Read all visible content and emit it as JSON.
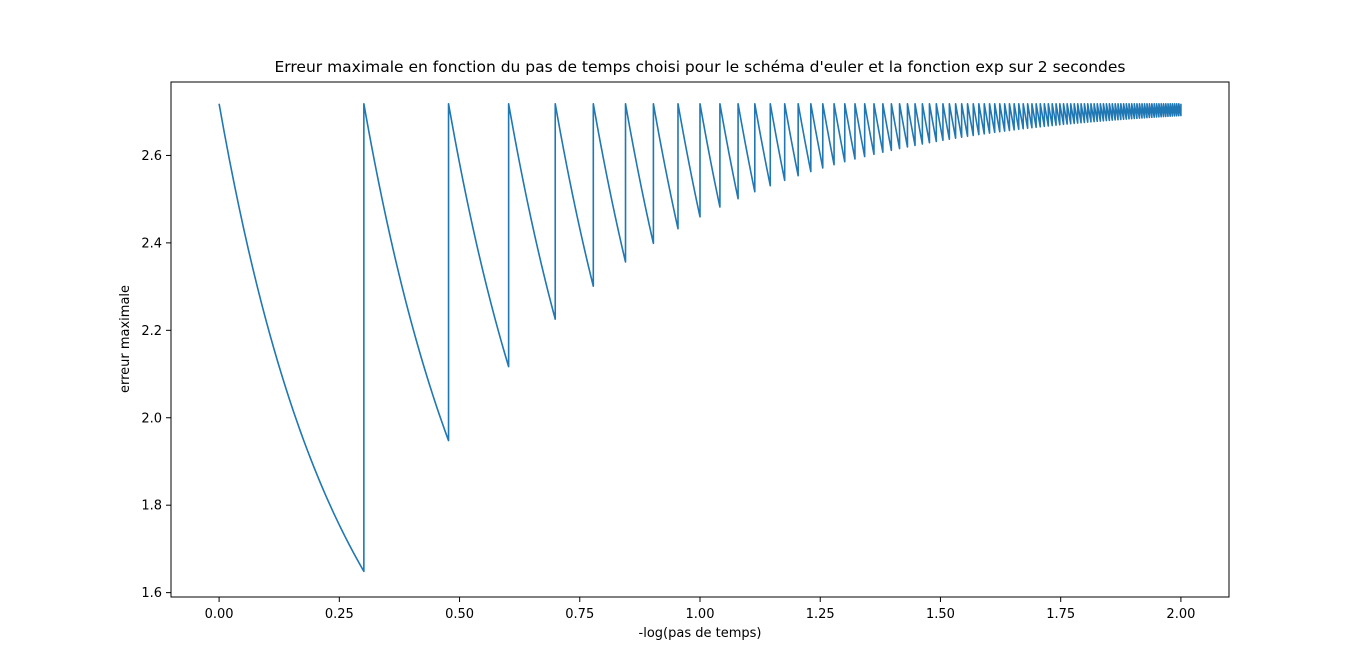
{
  "chart_data": {
    "type": "line",
    "title": "Erreur maximale en fonction du pas de temps choisi pour le schéma d'euler et la fonction exp sur 2 secondes",
    "xlabel": "-log(pas de temps)",
    "ylabel": "erreur maximale",
    "xlim": [
      -0.1,
      2.1
    ],
    "ylim": [
      1.59,
      2.768
    ],
    "xticks": [
      0.0,
      0.25,
      0.5,
      0.75,
      1.0,
      1.25,
      1.5,
      1.75,
      2.0
    ],
    "xtick_labels": [
      "0.00",
      "0.25",
      "0.50",
      "0.75",
      "1.00",
      "1.25",
      "1.50",
      "1.75",
      "2.00"
    ],
    "yticks": [
      1.6,
      1.8,
      2.0,
      2.2,
      2.4,
      2.6
    ],
    "ytick_labels": [
      "1.6",
      "1.8",
      "2.0",
      "2.2",
      "2.4",
      "2.6"
    ],
    "grid": false,
    "legend": "none",
    "series_color": "#1f77b4",
    "series": [
      {
        "description": "sawtooth: for each integer k from 1 to 100, x goes from log10(k) toward log10(k+1) while y decreases from e toward e^(k/(k+1)) then jumps back to e",
        "x_from": 1,
        "x_to": 100,
        "peak_value": 2.718,
        "trough_values": [
          {
            "x": 0.301,
            "y": 1.649
          },
          {
            "x": 0.477,
            "y": 1.948
          },
          {
            "x": 0.602,
            "y": 2.117
          },
          {
            "x": 0.699,
            "y": 2.226
          },
          {
            "x": 0.778,
            "y": 2.301
          },
          {
            "x": 0.845,
            "y": 2.357
          },
          {
            "x": 0.903,
            "y": 2.398
          },
          {
            "x": 0.954,
            "y": 2.432
          },
          {
            "x": 1.0,
            "y": 2.459
          },
          {
            "x": 1.041,
            "y": 2.482
          },
          {
            "x": 1.079,
            "y": 2.501
          }
        ]
      }
    ]
  }
}
